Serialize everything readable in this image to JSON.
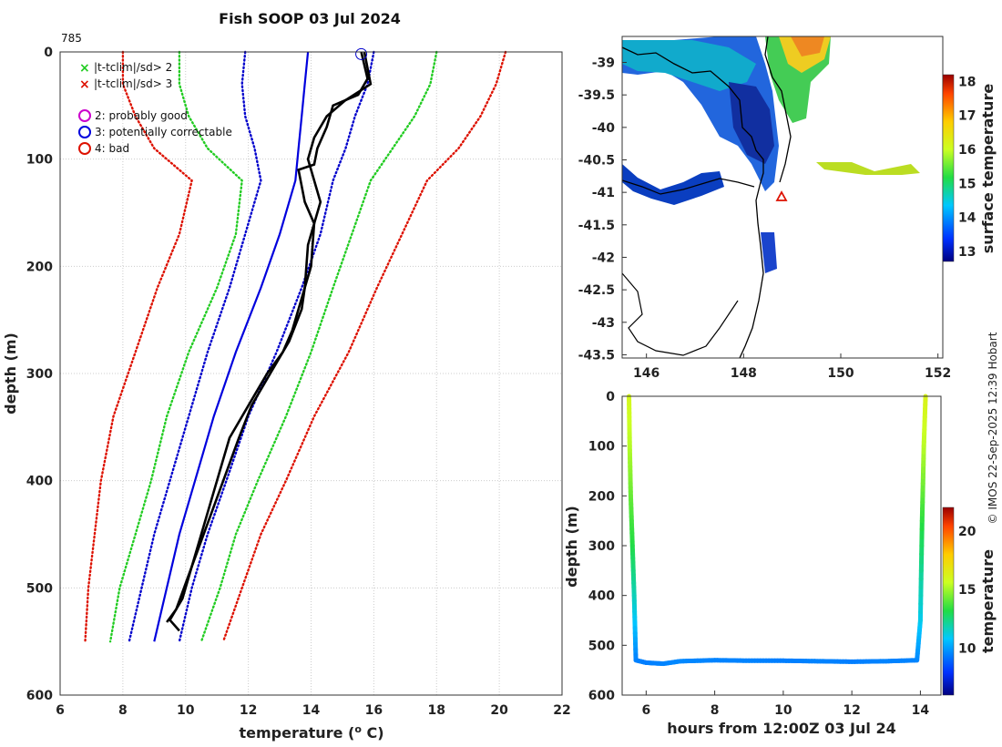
{
  "title": "Fish SOOP 03 Jul 2024",
  "profile_id": "785",
  "credit": "© IMOS 22-Sep-2025 12:39 Hobart",
  "colors": {
    "profile": "#000000",
    "clim_mean": "#0000dd",
    "sd_blue": "#0000cc",
    "sd_green": "#22cc22",
    "sd_red": "#dd1100",
    "coast": "#000000"
  },
  "legend": {
    "flag2": "|t-tclim|/sd> 2",
    "flag3": "|t-tclim|/sd> 3",
    "good": "2: probably good",
    "correctable": "3: potentially correctable",
    "bad": "4: bad"
  },
  "chart_data": [
    {
      "type": "line",
      "name": "profile",
      "xlabel": "temperature (o C)",
      "ylabel": "depth (m)",
      "xlim": [
        6,
        22
      ],
      "ylim": [
        0,
        600
      ],
      "xticks": [
        6,
        8,
        10,
        12,
        14,
        16,
        18,
        20,
        22
      ],
      "yticks": [
        0,
        100,
        200,
        300,
        400,
        500,
        600
      ],
      "grid": true,
      "series": [
        {
          "name": "clim_mean",
          "style": "solid",
          "color": "#0000dd",
          "t": [
            13.9,
            13.8,
            13.7,
            13.6,
            13.5,
            13.0,
            12.4,
            11.6,
            10.9,
            10.3,
            9.8,
            9.4,
            9.0
          ],
          "d": [
            0,
            30,
            60,
            90,
            120,
            170,
            220,
            280,
            340,
            400,
            450,
            500,
            550
          ]
        },
        {
          "name": "sd_minus1",
          "style": "dotted",
          "color": "#0000cc",
          "t": [
            11.9,
            11.8,
            11.9,
            12.2,
            12.4,
            11.9,
            11.4,
            10.7,
            10.1,
            9.5,
            9.0,
            8.6,
            8.2
          ],
          "d": [
            0,
            30,
            60,
            90,
            120,
            170,
            220,
            280,
            340,
            400,
            450,
            500,
            550
          ]
        },
        {
          "name": "sd_plus1",
          "style": "dotted",
          "color": "#0000cc",
          "t": [
            16.0,
            15.8,
            15.4,
            15.1,
            14.7,
            14.3,
            13.7,
            12.9,
            12.0,
            11.3,
            10.7,
            10.2,
            9.8
          ],
          "d": [
            0,
            30,
            60,
            90,
            120,
            170,
            220,
            280,
            340,
            400,
            450,
            500,
            550
          ]
        },
        {
          "name": "sd_minus2",
          "style": "dotted",
          "color": "#22cc22",
          "t": [
            9.8,
            9.8,
            10.1,
            10.7,
            11.8,
            11.6,
            11.0,
            10.1,
            9.4,
            8.9,
            8.4,
            7.9,
            7.6
          ],
          "d": [
            0,
            30,
            60,
            90,
            120,
            170,
            220,
            280,
            340,
            400,
            450,
            500,
            550
          ]
        },
        {
          "name": "sd_plus2",
          "style": "dotted",
          "color": "#22cc22",
          "t": [
            18.0,
            17.8,
            17.3,
            16.6,
            15.9,
            15.3,
            14.7,
            14.0,
            13.2,
            12.3,
            11.6,
            11.1,
            10.5
          ],
          "d": [
            0,
            30,
            60,
            90,
            120,
            170,
            220,
            280,
            340,
            400,
            450,
            500,
            550
          ]
        },
        {
          "name": "sd_minus3",
          "style": "dotted",
          "color": "#dd1100",
          "t": [
            8.0,
            8.0,
            8.4,
            9.0,
            10.2,
            9.8,
            9.1,
            8.4,
            7.7,
            7.3,
            7.1,
            6.9,
            6.8
          ],
          "d": [
            0,
            30,
            60,
            90,
            120,
            170,
            220,
            280,
            340,
            400,
            450,
            500,
            550
          ]
        },
        {
          "name": "sd_plus3",
          "style": "dotted",
          "color": "#dd1100",
          "t": [
            20.2,
            19.9,
            19.4,
            18.7,
            17.7,
            16.9,
            16.1,
            15.2,
            14.1,
            13.2,
            12.4,
            11.8,
            11.2
          ],
          "d": [
            0,
            30,
            60,
            90,
            120,
            170,
            220,
            280,
            340,
            400,
            450,
            500,
            550
          ]
        },
        {
          "name": "profile_1",
          "style": "solid",
          "color": "#000000",
          "t": [
            15.6,
            15.8,
            15.5,
            14.7,
            14.5,
            14.2,
            14.1,
            13.6,
            13.8,
            14.1,
            14.0,
            13.6,
            13.4,
            13.1,
            12.6,
            12.0,
            11.4,
            11.0,
            10.6,
            10.2,
            9.9,
            9.5,
            9.8
          ],
          "d": [
            0,
            25,
            40,
            50,
            70,
            90,
            105,
            110,
            140,
            160,
            200,
            240,
            260,
            280,
            300,
            330,
            360,
            400,
            440,
            480,
            510,
            530,
            540
          ]
        },
        {
          "name": "profile_2",
          "style": "solid",
          "color": "#000000",
          "t": [
            15.7,
            15.9,
            15.1,
            14.5,
            14.1,
            13.9,
            14.3,
            13.9,
            13.8,
            13.7,
            13.3,
            12.7,
            12.1,
            11.7,
            11.2,
            10.7,
            10.2,
            9.7,
            9.4
          ],
          "d": [
            0,
            30,
            45,
            60,
            80,
            100,
            140,
            180,
            220,
            240,
            270,
            300,
            330,
            360,
            400,
            440,
            480,
            520,
            532
          ]
        }
      ],
      "flag_marker": {
        "t": 15.6,
        "d": 2,
        "color": "#0000cc"
      }
    },
    {
      "type": "heatmap",
      "name": "map",
      "xlim": [
        145.5,
        152.1
      ],
      "ylim": [
        -43.55,
        -38.6
      ],
      "xticks": [
        146,
        148,
        150,
        152
      ],
      "yticks": [
        -39,
        -39.5,
        -40,
        -40.5,
        -41,
        -41.5,
        -42,
        -42.5,
        -43,
        -43.5
      ],
      "colorbar": {
        "label": "surface temperature",
        "range": [
          12.7,
          18.2
        ],
        "ticks": [
          13,
          14,
          15,
          16,
          17,
          18
        ]
      },
      "position_marker": {
        "lon": 148.75,
        "lat": -41.0,
        "color": "#dd1100"
      }
    },
    {
      "type": "line",
      "name": "track",
      "xlabel": "hours from 12:00Z 03 Jul 24",
      "ylabel": "depth (m)",
      "xlim": [
        5.3,
        14.6
      ],
      "ylim": [
        0,
        600
      ],
      "xticks": [
        6,
        8,
        10,
        12,
        14
      ],
      "yticks": [
        0,
        100,
        200,
        300,
        400,
        500,
        600
      ],
      "colorbar": {
        "label": "temperature",
        "range": [
          6,
          22
        ],
        "ticks": [
          10,
          15,
          20
        ]
      },
      "series": [
        {
          "name": "time_depth",
          "color_by": "temperature",
          "x": [
            5.5,
            5.52,
            5.55,
            5.6,
            5.65,
            5.7,
            6.0,
            6.5,
            7.0,
            8.0,
            9.0,
            10.0,
            11.0,
            12.0,
            13.0,
            13.9,
            14.0,
            14.05,
            14.1,
            14.15
          ],
          "y": [
            0,
            100,
            200,
            300,
            400,
            530,
            535,
            537,
            532,
            530,
            531,
            531,
            532,
            533,
            532,
            530,
            450,
            250,
            100,
            0
          ],
          "temp": [
            16,
            15.3,
            14.2,
            13.2,
            11.8,
            9.5,
            9.4,
            9.5,
            9.6,
            9.5,
            9.5,
            9.4,
            9.5,
            9.4,
            9.5,
            9.5,
            11,
            13.3,
            15.3,
            16.2
          ]
        }
      ]
    }
  ]
}
